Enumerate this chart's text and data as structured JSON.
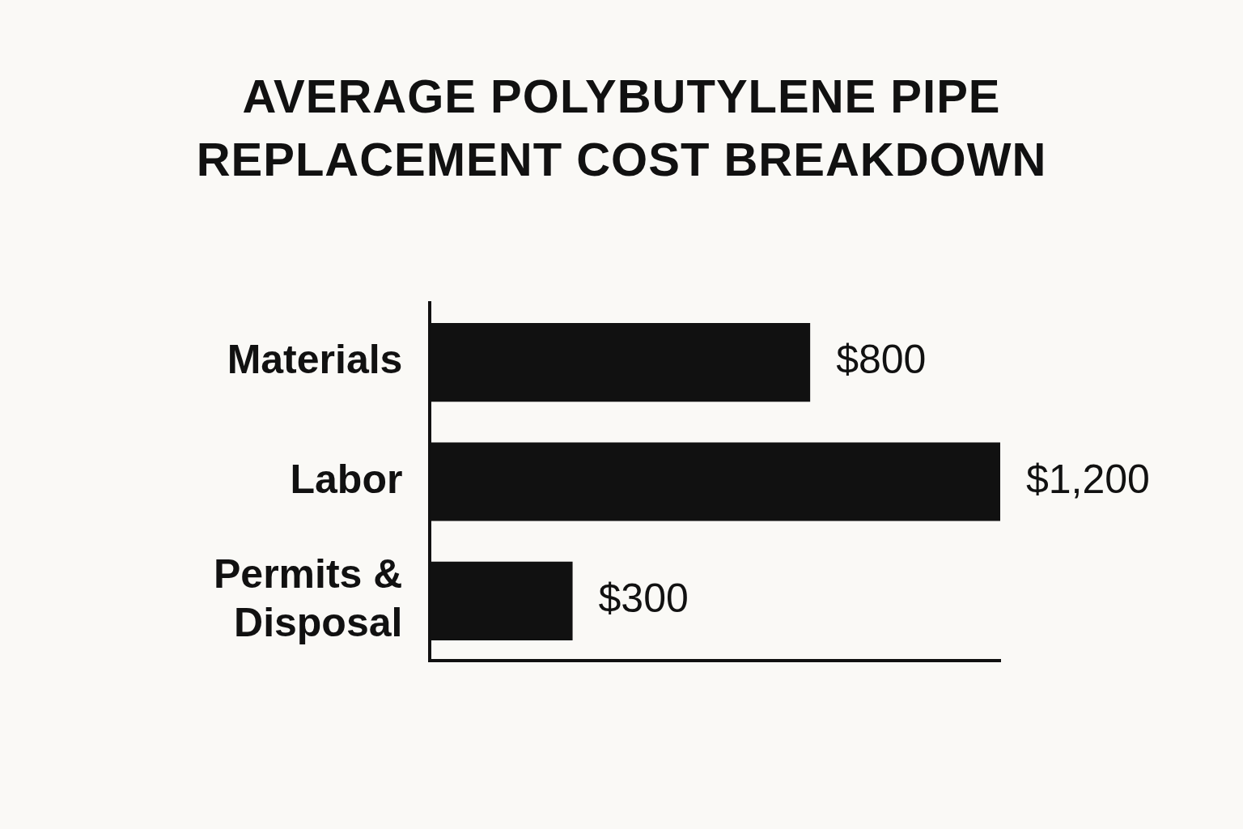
{
  "chart_data": {
    "type": "bar",
    "orientation": "horizontal",
    "title": "AVERAGE POLYBUTYLENE PIPE REPLACEMENT COST BREAKDOWN",
    "categories": [
      "Materials",
      "Labor",
      "Permits & Disposal"
    ],
    "values": [
      800,
      1200,
      300
    ],
    "color": "#111111",
    "data_labels": true,
    "value_labels": [
      "$800",
      "$1,200",
      "$300"
    ],
    "grid": false,
    "legend": false
  }
}
